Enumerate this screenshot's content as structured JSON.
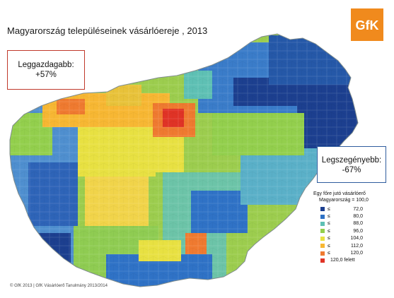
{
  "title": "Magyarország településeinek vásárlóereje , 2013",
  "logo": {
    "text": "GfK",
    "color": "#f08a1d"
  },
  "callouts": {
    "richest": {
      "label": "Leggazdagabb:",
      "value": "+57%",
      "border_color": "#c0392b"
    },
    "poorest": {
      "label": "Legszegényebb:",
      "value": "-67%",
      "border_color": "#2f5d9e"
    }
  },
  "legend": {
    "title": "Egy főre jutó vásárlóerő",
    "subtitle": "Magyarország = 100,0",
    "items": [
      {
        "symbol": "≤",
        "value": "72,0",
        "color": "#1c3f8f"
      },
      {
        "symbol": "≤",
        "value": "80,0",
        "color": "#2f72c6"
      },
      {
        "symbol": "≤",
        "value": "88,0",
        "color": "#5ec0b4"
      },
      {
        "symbol": "≤",
        "value": "96,0",
        "color": "#93cf4d"
      },
      {
        "symbol": "≤",
        "value": "104,0",
        "color": "#e8e142"
      },
      {
        "symbol": "≤",
        "value": "112,0",
        "color": "#f7b733"
      },
      {
        "symbol": "≤",
        "value": "120,0",
        "color": "#ef7a30"
      },
      {
        "symbol": "",
        "value": "120,0 felett",
        "color": "#e03326"
      }
    ]
  },
  "footer": "© GfK 2013 | GfK Vásárlóerő Tanulmány 2013/2014"
}
